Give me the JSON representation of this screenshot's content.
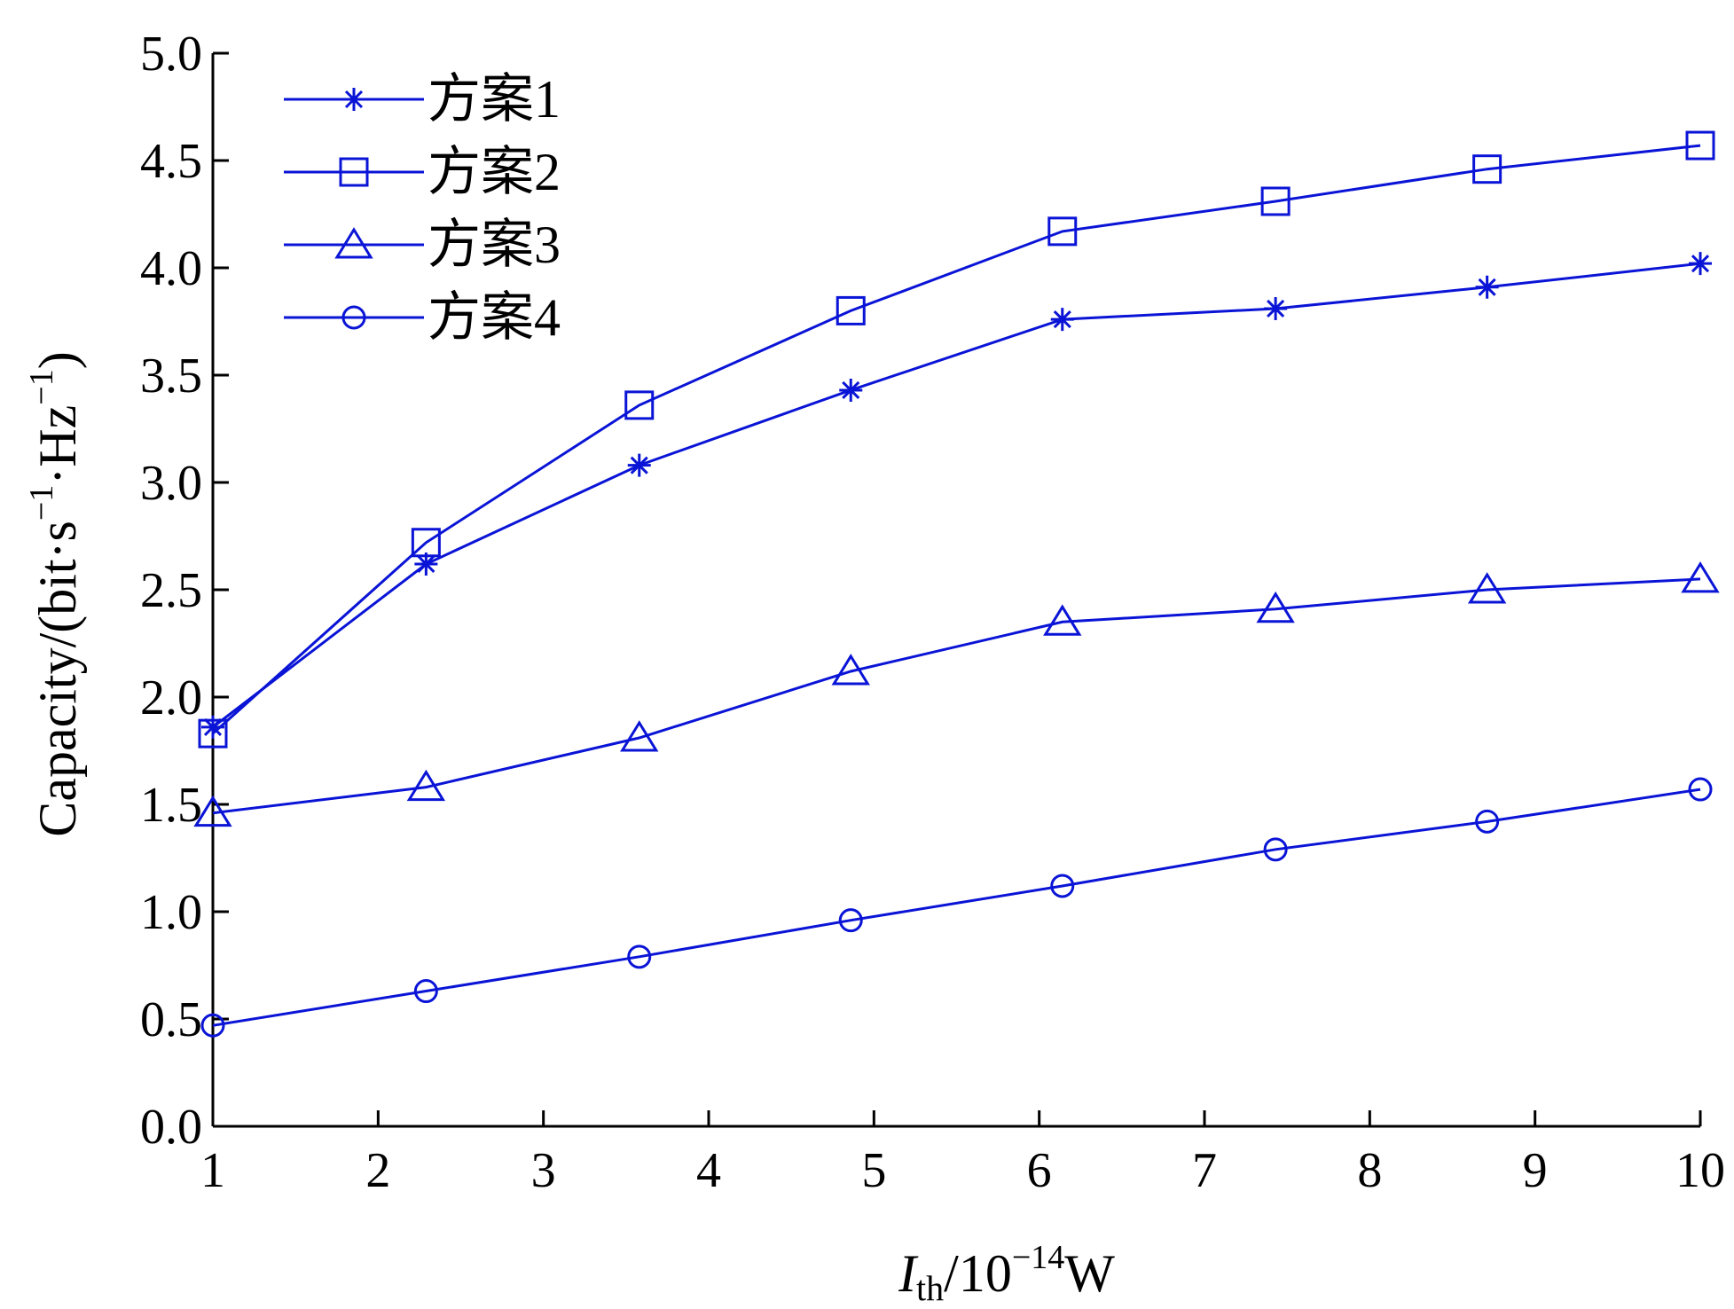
{
  "chart_data": {
    "type": "line",
    "x": [
      1,
      2.29,
      3.58,
      4.86,
      6.14,
      7.43,
      8.71,
      10
    ],
    "xlim": [
      1,
      10
    ],
    "ylim": [
      0,
      5
    ],
    "x_ticks": [
      "1",
      "2",
      "3",
      "4",
      "5",
      "6",
      "7",
      "8",
      "9",
      "10"
    ],
    "y_ticks": [
      "0.0",
      "0.5",
      "1.0",
      "1.5",
      "2.0",
      "2.5",
      "3.0",
      "3.5",
      "4.0",
      "4.5",
      "5.0"
    ],
    "xlabel": {
      "italic": "I",
      "sub": "th",
      "mid": "/10",
      "sup": "−14",
      "end": "W"
    },
    "ylabel": {
      "a": "Capacity/(bit·s",
      "sup1": "−1",
      "b": "·Hz",
      "sup2": "−1",
      "c": ")"
    },
    "legend_position": "top-left",
    "color": "#0a14d6",
    "series": [
      {
        "name": "方案1",
        "marker": "asterisk",
        "values": [
          1.86,
          2.62,
          3.08,
          3.43,
          3.76,
          3.81,
          3.91,
          4.02
        ]
      },
      {
        "name": "方案2",
        "marker": "square",
        "values": [
          1.83,
          2.72,
          3.36,
          3.8,
          4.17,
          4.31,
          4.46,
          4.57
        ]
      },
      {
        "name": "方案3",
        "marker": "triangle",
        "values": [
          1.46,
          1.58,
          1.81,
          2.12,
          2.35,
          2.41,
          2.5,
          2.55
        ]
      },
      {
        "name": "方案4",
        "marker": "circle",
        "values": [
          0.47,
          0.63,
          0.79,
          0.96,
          1.12,
          1.29,
          1.42,
          1.57
        ]
      }
    ]
  }
}
